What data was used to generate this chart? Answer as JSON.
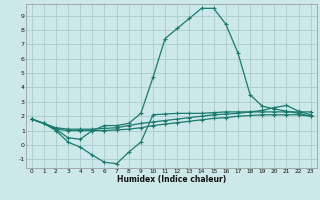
{
  "title": "",
  "xlabel": "Humidex (Indice chaleur)",
  "bg_color": "#cce8e8",
  "grid_color": "#b0d0d0",
  "line_color": "#1a7a6e",
  "x_ticks": [
    0,
    1,
    2,
    3,
    4,
    5,
    6,
    7,
    8,
    9,
    10,
    11,
    12,
    13,
    14,
    15,
    16,
    17,
    18,
    19,
    20,
    21,
    22,
    23
  ],
  "y_ticks": [
    -1,
    0,
    1,
    2,
    3,
    4,
    5,
    6,
    7,
    8,
    9
  ],
  "xlim": [
    -0.5,
    23.5
  ],
  "ylim": [
    -1.6,
    9.8
  ],
  "line1_y": [
    1.8,
    1.5,
    1.0,
    0.2,
    -0.15,
    -0.7,
    -1.2,
    -1.3,
    -0.5,
    0.2,
    2.1,
    2.15,
    2.2,
    2.2,
    2.2,
    2.25,
    2.3,
    2.3,
    2.3,
    2.3,
    2.3,
    2.3,
    2.3,
    2.3
  ],
  "line2_y": [
    1.8,
    1.5,
    1.2,
    1.1,
    1.1,
    1.1,
    1.15,
    1.2,
    1.35,
    1.5,
    1.6,
    1.7,
    1.8,
    1.9,
    2.0,
    2.1,
    2.15,
    2.2,
    2.3,
    2.4,
    2.6,
    2.75,
    2.35,
    2.1
  ],
  "line3_y": [
    1.8,
    1.5,
    1.1,
    1.0,
    1.0,
    1.0,
    1.0,
    1.05,
    1.1,
    1.2,
    1.35,
    1.45,
    1.55,
    1.65,
    1.75,
    1.85,
    1.9,
    2.0,
    2.05,
    2.1,
    2.1,
    2.1,
    2.1,
    2.0
  ],
  "line4_y": [
    1.8,
    1.5,
    1.1,
    0.5,
    0.4,
    1.0,
    1.35,
    1.35,
    1.5,
    2.2,
    4.7,
    7.4,
    8.1,
    8.8,
    9.5,
    9.5,
    8.4,
    6.4,
    3.5,
    2.7,
    2.5,
    2.35,
    2.2,
    2.0
  ]
}
